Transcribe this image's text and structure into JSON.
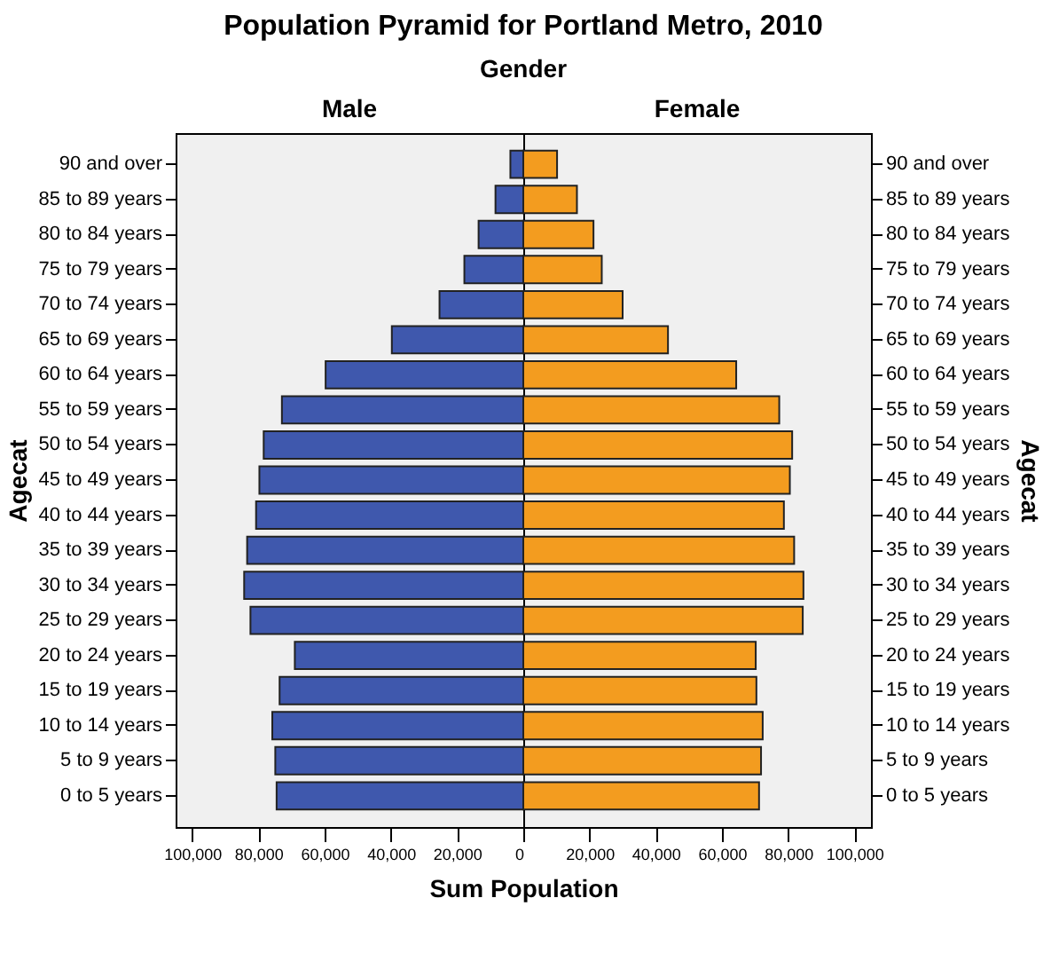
{
  "chart_data": [
    {
      "type": "bar",
      "orientation": "horizontal",
      "title": "Population Pyramid for Portland Metro,  2010",
      "subtitle": "Gender",
      "xlabel": "Sum Population",
      "ylabel": "Agecat",
      "categories": [
        "90 and over",
        "85 to 89 years",
        "80 to 84 years",
        "75 to 79 years",
        "70 to 74 years",
        "65 to 69 years",
        "60 to 64 years",
        "55 to 59 years",
        "50 to 54 years",
        "45 to 49 years",
        "40 to 44 years",
        "35 to 39 years",
        "30 to 34 years",
        "25 to 29 years",
        "20 to 24 years",
        "15 to 19 years",
        "10 to 14 years",
        "5 to 9 years",
        "0 to 5 years"
      ],
      "series": [
        {
          "name": "Male",
          "color": "#3f58ad",
          "values": [
            3900,
            8400,
            13500,
            17800,
            25300,
            39700,
            59700,
            72900,
            78400,
            79700,
            80700,
            83400,
            84300,
            82400,
            69000,
            73600,
            75800,
            74900,
            74500
          ]
        }
      ],
      "xlim": [
        105000,
        0
      ],
      "xticks": [
        {
          "value": 100000,
          "label": "100,000"
        },
        {
          "value": 80000,
          "label": "80,000"
        },
        {
          "value": 60000,
          "label": "60,000"
        },
        {
          "value": 40000,
          "label": "40,000"
        },
        {
          "value": 20000,
          "label": "20,000"
        },
        0
      ],
      "grid": false
    },
    {
      "type": "bar",
      "orientation": "horizontal",
      "ylabel": "Agecat",
      "categories": [
        "90 and over",
        "85 to 89 years",
        "80 to 84 years",
        "75 to 79 years",
        "70 to 74 years",
        "65 to 69 years",
        "60 to 64 years",
        "55 to 59 years",
        "50 to 54 years",
        "45 to 49 years",
        "40 to 44 years",
        "35 to 39 years",
        "30 to 34 years",
        "25 to 29 years",
        "20 to 24 years",
        "15 to 19 years",
        "10 to 14 years",
        "5 to 9 years",
        "0 to 5 years"
      ],
      "series": [
        {
          "name": "Female",
          "color": "#f39c1f",
          "values": [
            10200,
            16200,
            21200,
            23700,
            30000,
            43700,
            64300,
            77300,
            81200,
            80500,
            78700,
            81800,
            84600,
            84400,
            70200,
            70400,
            72300,
            71800,
            71200
          ]
        }
      ],
      "xlim": [
        0,
        105000
      ],
      "xticks": [
        {
          "value": 0,
          "label": null
        },
        {
          "value": 20000,
          "label": "20,000"
        },
        {
          "value": 40000,
          "label": "40,000"
        },
        {
          "value": 60000,
          "label": "60,000"
        },
        {
          "value": 80000,
          "label": "80,000"
        },
        {
          "value": 100000,
          "label": "100,000"
        }
      ],
      "grid": false
    }
  ]
}
